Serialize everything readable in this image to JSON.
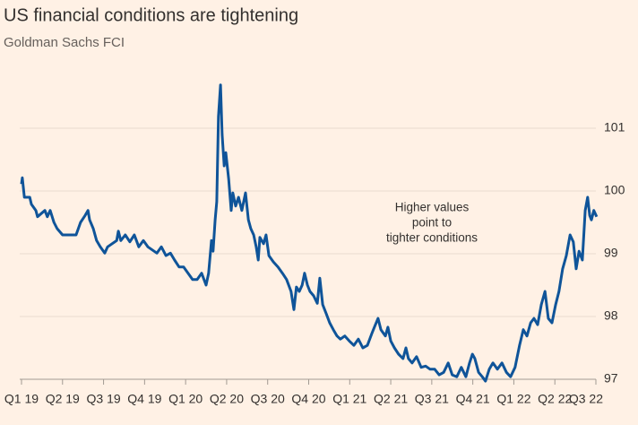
{
  "chart_data": {
    "type": "line",
    "title": "US financial conditions are tightening",
    "subtitle": "Goldman Sachs FCI",
    "annotation": [
      "Higher values",
      "point to",
      "tighter conditions"
    ],
    "xlim": [
      0,
      14.05
    ],
    "xticks": [
      {
        "value": 0,
        "label": "Q1 19"
      },
      {
        "value": 1,
        "label": "Q2 19"
      },
      {
        "value": 2,
        "label": "Q3 19"
      },
      {
        "value": 3,
        "label": "Q4 19"
      },
      {
        "value": 4,
        "label": "Q1 20"
      },
      {
        "value": 5,
        "label": "Q2 20"
      },
      {
        "value": 6,
        "label": "Q3 20"
      },
      {
        "value": 7,
        "label": "Q4 20"
      },
      {
        "value": 8,
        "label": "Q1 21"
      },
      {
        "value": 9,
        "label": "Q2 21"
      },
      {
        "value": 10,
        "label": "Q3 21"
      },
      {
        "value": 11,
        "label": "Q4 21"
      },
      {
        "value": 12,
        "label": "Q1 22"
      },
      {
        "value": 13,
        "label": "Q2 22"
      },
      {
        "value": 14,
        "label": "Q3 22"
      }
    ],
    "ylim": [
      97,
      101.8
    ],
    "yticks": [
      97,
      98,
      99,
      100,
      101
    ],
    "grid": true,
    "series": [
      {
        "name": "Goldman Sachs FCI",
        "color": "#0f5499",
        "x": [
          0,
          0.02,
          0.07,
          0.2,
          0.24,
          0.35,
          0.39,
          0.57,
          0.63,
          0.7,
          0.79,
          0.87,
          1.0,
          1.33,
          1.44,
          1.55,
          1.62,
          1.66,
          1.75,
          1.83,
          1.92,
          2.03,
          2.1,
          2.32,
          2.36,
          2.42,
          2.53,
          2.64,
          2.75,
          2.86,
          2.97,
          3.08,
          3.3,
          3.41,
          3.52,
          3.63,
          3.73,
          3.84,
          3.95,
          4.06,
          4.17,
          4.28,
          4.39,
          4.5,
          4.56,
          4.63,
          4.67,
          4.72,
          4.76,
          4.8,
          4.85,
          4.89,
          4.94,
          4.98,
          5.05,
          5.11,
          5.15,
          5.22,
          5.29,
          5.37,
          5.46,
          5.53,
          5.59,
          5.66,
          5.72,
          5.77,
          5.81,
          5.9,
          5.96,
          6.03,
          6.14,
          6.25,
          6.36,
          6.46,
          6.57,
          6.64,
          6.7,
          6.77,
          6.84,
          6.9,
          6.97,
          7.03,
          7.12,
          7.21,
          7.27,
          7.34,
          7.43,
          7.51,
          7.6,
          7.69,
          7.77,
          7.88,
          7.99,
          8.1,
          8.21,
          8.32,
          8.43,
          8.54,
          8.6,
          8.69,
          8.76,
          8.87,
          8.93,
          9.0,
          9.09,
          9.19,
          9.3,
          9.37,
          9.43,
          9.52,
          9.63,
          9.74,
          9.85,
          9.96,
          10.07,
          10.18,
          10.29,
          10.4,
          10.5,
          10.61,
          10.72,
          10.83,
          10.92,
          10.99,
          11.05,
          11.14,
          11.23,
          11.31,
          11.4,
          11.49,
          11.6,
          11.71,
          11.82,
          11.92,
          12.03,
          12.14,
          12.23,
          12.32,
          12.41,
          12.49,
          12.58,
          12.67,
          12.76,
          12.84,
          12.93,
          13.02,
          13.1,
          13.19,
          13.28,
          13.37,
          13.45,
          13.52,
          13.59,
          13.67,
          13.74,
          13.8,
          13.85,
          13.89,
          13.95,
          14.02
        ],
        "values": [
          100.11,
          100.21,
          99.9,
          99.9,
          99.79,
          99.69,
          99.59,
          99.69,
          99.59,
          99.69,
          99.5,
          99.4,
          99.3,
          99.3,
          99.5,
          99.61,
          99.69,
          99.54,
          99.4,
          99.21,
          99.11,
          99.01,
          99.11,
          99.21,
          99.36,
          99.21,
          99.3,
          99.19,
          99.3,
          99.11,
          99.21,
          99.11,
          99.01,
          99.11,
          98.97,
          99.01,
          98.9,
          98.79,
          98.79,
          98.69,
          98.59,
          98.59,
          98.69,
          98.5,
          98.69,
          99.21,
          99.04,
          99.54,
          99.83,
          101.19,
          101.69,
          100.9,
          100.4,
          100.61,
          100.19,
          99.69,
          99.97,
          99.76,
          99.9,
          99.69,
          99.97,
          99.54,
          99.4,
          99.3,
          99.11,
          98.9,
          99.26,
          99.16,
          99.3,
          98.97,
          98.87,
          98.79,
          98.69,
          98.59,
          98.4,
          98.11,
          98.47,
          98.4,
          98.5,
          98.69,
          98.5,
          98.4,
          98.33,
          98.21,
          98.61,
          98.19,
          98.04,
          97.9,
          97.79,
          97.69,
          97.64,
          97.69,
          97.61,
          97.54,
          97.64,
          97.5,
          97.54,
          97.73,
          97.83,
          97.97,
          97.79,
          97.69,
          97.83,
          97.61,
          97.5,
          97.4,
          97.33,
          97.5,
          97.33,
          97.26,
          97.36,
          97.19,
          97.21,
          97.16,
          97.16,
          97.07,
          97.11,
          97.26,
          97.07,
          97.04,
          97.19,
          97.04,
          97.26,
          97.4,
          97.33,
          97.11,
          97.04,
          96.97,
          97.16,
          97.26,
          97.16,
          97.26,
          97.11,
          97.04,
          97.19,
          97.54,
          97.79,
          97.69,
          97.9,
          97.97,
          97.87,
          98.19,
          98.4,
          97.97,
          97.9,
          98.19,
          98.4,
          98.76,
          98.97,
          99.3,
          99.19,
          98.76,
          99.04,
          98.9,
          99.69,
          99.9,
          99.61,
          99.54,
          99.69,
          99.59
        ]
      }
    ]
  }
}
